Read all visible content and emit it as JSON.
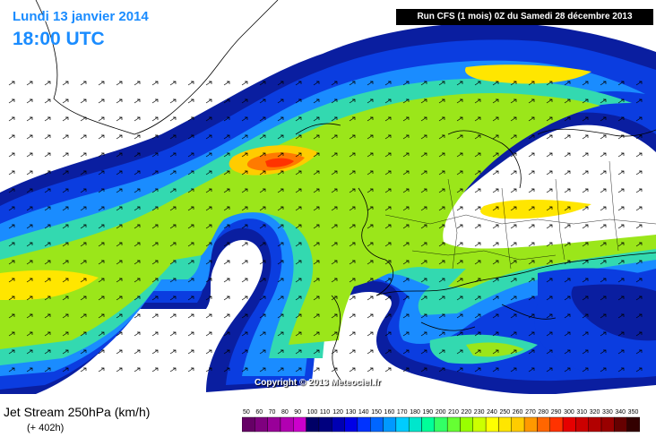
{
  "header": {
    "date_label": "Lundi 13 janvier 2014",
    "time_label": "18:00 UTC",
    "run_label": "Run CFS (1 mois) 0Z du Samedi 28 décembre 2013"
  },
  "map": {
    "copyright": "Copyright © 2013 Meteociel.fr",
    "arrow_color": "#000000",
    "coast_color": "#000000"
  },
  "footer": {
    "title": "Jet Stream 250hPa (km/h)",
    "subtitle": "(+ 402h)"
  },
  "legend": {
    "values": [
      "50",
      "60",
      "70",
      "80",
      "90",
      "100",
      "110",
      "120",
      "130",
      "140",
      "150",
      "160",
      "170",
      "180",
      "190",
      "200",
      "210",
      "220",
      "230",
      "240",
      "250",
      "260",
      "270",
      "280",
      "290",
      "300",
      "310",
      "320",
      "330",
      "340",
      "350"
    ],
    "colors": [
      "#660066",
      "#7f007f",
      "#990099",
      "#b200b2",
      "#cc00cc",
      "#000066",
      "#00007f",
      "#0000b2",
      "#0000e6",
      "#0033ff",
      "#0066ff",
      "#0099ff",
      "#00ccff",
      "#00e6cc",
      "#00ff99",
      "#33ff66",
      "#66ff33",
      "#99ff00",
      "#ccff00",
      "#ffff00",
      "#ffe600",
      "#ffcc00",
      "#ff9900",
      "#ff6600",
      "#ff3300",
      "#e60000",
      "#cc0000",
      "#b20000",
      "#990000",
      "#660000",
      "#330000"
    ]
  }
}
